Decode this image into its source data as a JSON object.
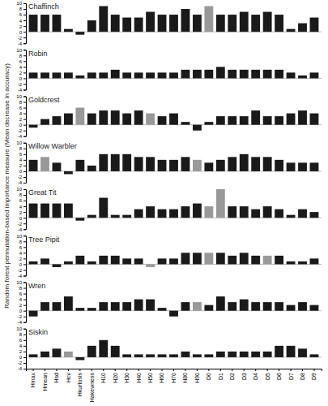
{
  "chart_data": [
    {
      "type": "bar",
      "title": "Chaffinch",
      "ylabel": "Random forest permutation-based importance measure (Mean decrease in accuracy)",
      "categories": [
        "Hmax",
        "Hmean",
        "Hsd",
        "Hcv",
        "Hkurtosis",
        "Hakewness",
        "H10",
        "H20",
        "H30",
        "H40",
        "H50",
        "H60",
        "H70",
        "H80",
        "H90",
        "D0",
        "D1",
        "D2",
        "D3",
        "D4",
        "D5",
        "D6",
        "D7",
        "D8",
        "D9"
      ],
      "values": [
        6,
        6,
        6,
        1,
        -1,
        4,
        9,
        6,
        5,
        5,
        7,
        6,
        6,
        8,
        6,
        9,
        6,
        6,
        7,
        6,
        7,
        6,
        1,
        3,
        5
      ],
      "colors": [
        "#1a1a1a",
        "#1a1a1a",
        "#1a1a1a",
        "#1a1a1a",
        "#1a1a1a",
        "#1a1a1a",
        "#1a1a1a",
        "#1a1a1a",
        "#1a1a1a",
        "#1a1a1a",
        "#1a1a1a",
        "#1a1a1a",
        "#1a1a1a",
        "#1a1a1a",
        "#1a1a1a",
        "#999999",
        "#1a1a1a",
        "#1a1a1a",
        "#1a1a1a",
        "#1a1a1a",
        "#1a1a1a",
        "#1a1a1a",
        "#1a1a1a",
        "#1a1a1a",
        "#1a1a1a"
      ],
      "ylim": [
        -4,
        10
      ],
      "yticks": [
        -4,
        -2,
        0,
        2,
        4,
        6,
        8,
        10
      ],
      "grid": false,
      "tick_labels": "y"
    },
    {
      "type": "bar",
      "title": "Robin",
      "categories": [
        "Hmax",
        "Hmean",
        "Hsd",
        "Hcv",
        "Hkurtosis",
        "Hakewness",
        "H10",
        "H20",
        "H30",
        "H40",
        "H50",
        "H60",
        "H70",
        "H80",
        "H90",
        "D0",
        "D1",
        "D2",
        "D3",
        "D4",
        "D5",
        "D6",
        "D7",
        "D8",
        "D9"
      ],
      "values": [
        2,
        2,
        2,
        2,
        1,
        2,
        2,
        3,
        2,
        2,
        2,
        2,
        2,
        3,
        3,
        3,
        4,
        3,
        3,
        3,
        3,
        3,
        2,
        1,
        2
      ],
      "colors": [
        "#1a1a1a",
        "#1a1a1a",
        "#1a1a1a",
        "#1a1a1a",
        "#1a1a1a",
        "#1a1a1a",
        "#1a1a1a",
        "#1a1a1a",
        "#1a1a1a",
        "#1a1a1a",
        "#1a1a1a",
        "#1a1a1a",
        "#1a1a1a",
        "#1a1a1a",
        "#1a1a1a",
        "#1a1a1a",
        "#1a1a1a",
        "#1a1a1a",
        "#1a1a1a",
        "#1a1a1a",
        "#1a1a1a",
        "#1a1a1a",
        "#1a1a1a",
        "#1a1a1a",
        "#1a1a1a"
      ],
      "ylim": [
        -4,
        10
      ],
      "yticks": [
        -4,
        -2,
        0,
        2,
        4,
        6,
        8,
        10
      ],
      "grid": false,
      "tick_labels": "y"
    },
    {
      "type": "bar",
      "title": "Goldcrest",
      "categories": [
        "Hmax",
        "Hmean",
        "Hsd",
        "Hcv",
        "Hkurtosis",
        "Hakewness",
        "H10",
        "H20",
        "H30",
        "H40",
        "H50",
        "H60",
        "H70",
        "H80",
        "H90",
        "D0",
        "D1",
        "D2",
        "D3",
        "D4",
        "D5",
        "D6",
        "D7",
        "D8",
        "D9"
      ],
      "values": [
        -1,
        2,
        3,
        4,
        6,
        4,
        5,
        5,
        4,
        5,
        4,
        3,
        4,
        1,
        -2,
        1,
        3,
        3,
        3,
        5,
        3,
        3,
        4,
        5,
        4
      ],
      "colors": [
        "#1a1a1a",
        "#1a1a1a",
        "#1a1a1a",
        "#1a1a1a",
        "#999999",
        "#1a1a1a",
        "#1a1a1a",
        "#1a1a1a",
        "#1a1a1a",
        "#1a1a1a",
        "#999999",
        "#1a1a1a",
        "#1a1a1a",
        "#1a1a1a",
        "#1a1a1a",
        "#1a1a1a",
        "#1a1a1a",
        "#1a1a1a",
        "#1a1a1a",
        "#1a1a1a",
        "#1a1a1a",
        "#1a1a1a",
        "#1a1a1a",
        "#1a1a1a",
        "#1a1a1a"
      ],
      "ylim": [
        -4,
        10
      ],
      "yticks": [
        -4,
        -2,
        0,
        2,
        4,
        6,
        8,
        10
      ],
      "grid": false,
      "tick_labels": "y"
    },
    {
      "type": "bar",
      "title": "Willow Warbler",
      "categories": [
        "Hmax",
        "Hmean",
        "Hsd",
        "Hcv",
        "Hkurtosis",
        "Hakewness",
        "H10",
        "H20",
        "H30",
        "H40",
        "H50",
        "H60",
        "H70",
        "H80",
        "H90",
        "D0",
        "D1",
        "D2",
        "D3",
        "D4",
        "D5",
        "D6",
        "D7",
        "D8",
        "D9"
      ],
      "values": [
        4,
        5,
        3,
        -1,
        4,
        2,
        6,
        6,
        6,
        5,
        5,
        4,
        4,
        5,
        4,
        3,
        4,
        5,
        6,
        5,
        5,
        4,
        3,
        3,
        3
      ],
      "colors": [
        "#1a1a1a",
        "#999999",
        "#1a1a1a",
        "#1a1a1a",
        "#1a1a1a",
        "#1a1a1a",
        "#1a1a1a",
        "#1a1a1a",
        "#1a1a1a",
        "#1a1a1a",
        "#1a1a1a",
        "#1a1a1a",
        "#1a1a1a",
        "#1a1a1a",
        "#999999",
        "#1a1a1a",
        "#1a1a1a",
        "#1a1a1a",
        "#1a1a1a",
        "#1a1a1a",
        "#1a1a1a",
        "#1a1a1a",
        "#1a1a1a",
        "#1a1a1a",
        "#1a1a1a"
      ],
      "ylim": [
        -4,
        10
      ],
      "yticks": [
        -4,
        -2,
        0,
        2,
        4,
        6,
        8,
        10
      ],
      "grid": false,
      "tick_labels": "y"
    },
    {
      "type": "bar",
      "title": "Great Tit",
      "categories": [
        "Hmax",
        "Hmean",
        "Hsd",
        "Hcv",
        "Hkurtosis",
        "Hakewness",
        "H10",
        "H20",
        "H30",
        "H40",
        "H50",
        "H60",
        "H70",
        "H80",
        "H90",
        "D0",
        "D1",
        "D2",
        "D3",
        "D4",
        "D5",
        "D6",
        "D7",
        "D8",
        "D9"
      ],
      "values": [
        5,
        5,
        5,
        5,
        -1,
        1,
        7,
        1,
        1,
        3,
        4,
        3,
        3,
        4,
        5,
        4,
        10,
        4,
        4,
        3,
        4,
        3,
        1,
        3,
        2
      ],
      "colors": [
        "#1a1a1a",
        "#1a1a1a",
        "#1a1a1a",
        "#1a1a1a",
        "#1a1a1a",
        "#1a1a1a",
        "#1a1a1a",
        "#1a1a1a",
        "#1a1a1a",
        "#1a1a1a",
        "#1a1a1a",
        "#1a1a1a",
        "#1a1a1a",
        "#1a1a1a",
        "#1a1a1a",
        "#999999",
        "#999999",
        "#1a1a1a",
        "#1a1a1a",
        "#1a1a1a",
        "#1a1a1a",
        "#1a1a1a",
        "#1a1a1a",
        "#1a1a1a",
        "#1a1a1a"
      ],
      "ylim": [
        -4,
        10
      ],
      "yticks": [
        -4,
        -2,
        0,
        2,
        4,
        6,
        8,
        10
      ],
      "grid": false,
      "tick_labels": "y"
    },
    {
      "type": "bar",
      "title": "Tree Pipit",
      "categories": [
        "Hmax",
        "Hmean",
        "Hsd",
        "Hcv",
        "Hkurtosis",
        "Hakewness",
        "H10",
        "H20",
        "H30",
        "H40",
        "H50",
        "H60",
        "H70",
        "H80",
        "H90",
        "D0",
        "D1",
        "D2",
        "D3",
        "D4",
        "D5",
        "D6",
        "D7",
        "D8",
        "D9"
      ],
      "values": [
        1,
        2,
        -1,
        1,
        3,
        1,
        3,
        3,
        2,
        2,
        -1,
        2,
        2,
        4,
        4,
        4,
        4,
        3,
        4,
        3,
        3,
        3,
        1,
        1,
        2
      ],
      "colors": [
        "#1a1a1a",
        "#1a1a1a",
        "#1a1a1a",
        "#1a1a1a",
        "#1a1a1a",
        "#1a1a1a",
        "#1a1a1a",
        "#1a1a1a",
        "#1a1a1a",
        "#1a1a1a",
        "#999999",
        "#1a1a1a",
        "#1a1a1a",
        "#1a1a1a",
        "#1a1a1a",
        "#999999",
        "#1a1a1a",
        "#1a1a1a",
        "#1a1a1a",
        "#1a1a1a",
        "#999999",
        "#1a1a1a",
        "#1a1a1a",
        "#1a1a1a",
        "#1a1a1a"
      ],
      "ylim": [
        -4,
        10
      ],
      "yticks": [
        -4,
        -2,
        0,
        2,
        4,
        6,
        8,
        10
      ],
      "grid": false,
      "tick_labels": "y"
    },
    {
      "type": "bar",
      "title": "Wren",
      "categories": [
        "Hmax",
        "Hmean",
        "Hsd",
        "Hcv",
        "Hkurtosis",
        "Hakewness",
        "H10",
        "H20",
        "H30",
        "H40",
        "H50",
        "H60",
        "H70",
        "H80",
        "H90",
        "D0",
        "D1",
        "D2",
        "D3",
        "D4",
        "D5",
        "D6",
        "D7",
        "D8",
        "D9"
      ],
      "values": [
        -2,
        3,
        3,
        5,
        1,
        1,
        3,
        3,
        3,
        4,
        4,
        1,
        -2,
        3,
        3,
        2,
        5,
        3,
        4,
        3,
        3,
        3,
        2,
        3,
        2
      ],
      "colors": [
        "#1a1a1a",
        "#1a1a1a",
        "#1a1a1a",
        "#1a1a1a",
        "#1a1a1a",
        "#1a1a1a",
        "#1a1a1a",
        "#1a1a1a",
        "#1a1a1a",
        "#1a1a1a",
        "#1a1a1a",
        "#1a1a1a",
        "#1a1a1a",
        "#1a1a1a",
        "#999999",
        "#1a1a1a",
        "#1a1a1a",
        "#1a1a1a",
        "#1a1a1a",
        "#1a1a1a",
        "#1a1a1a",
        "#1a1a1a",
        "#1a1a1a",
        "#1a1a1a",
        "#1a1a1a"
      ],
      "ylim": [
        -4,
        10
      ],
      "yticks": [
        -4,
        -2,
        0,
        2,
        4,
        6,
        8,
        10
      ],
      "grid": false,
      "tick_labels": "y"
    },
    {
      "type": "bar",
      "title": "Siskin",
      "categories": [
        "Hmax",
        "Hmean",
        "Hsd",
        "Hcv",
        "Hkurtosis",
        "Hakewness",
        "H10",
        "H20",
        "H30",
        "H40",
        "H50",
        "H60",
        "H70",
        "H80",
        "H90",
        "D0",
        "D1",
        "D2",
        "D3",
        "D4",
        "D5",
        "D6",
        "D7",
        "D8",
        "D9"
      ],
      "values": [
        1,
        2,
        3,
        2,
        -1,
        4,
        6,
        4,
        1,
        1,
        1,
        1,
        1,
        2,
        1,
        1,
        2,
        2,
        2,
        2,
        2,
        4,
        4,
        3,
        1
      ],
      "colors": [
        "#1a1a1a",
        "#1a1a1a",
        "#1a1a1a",
        "#999999",
        "#1a1a1a",
        "#1a1a1a",
        "#1a1a1a",
        "#1a1a1a",
        "#1a1a1a",
        "#1a1a1a",
        "#1a1a1a",
        "#1a1a1a",
        "#1a1a1a",
        "#1a1a1a",
        "#1a1a1a",
        "#1a1a1a",
        "#1a1a1a",
        "#1a1a1a",
        "#1a1a1a",
        "#1a1a1a",
        "#1a1a1a",
        "#1a1a1a",
        "#1a1a1a",
        "#1a1a1a",
        "#1a1a1a"
      ],
      "ylim": [
        -4,
        10
      ],
      "yticks": [
        -4,
        -2,
        0,
        2,
        4,
        6,
        8,
        10
      ],
      "grid": false
    }
  ]
}
